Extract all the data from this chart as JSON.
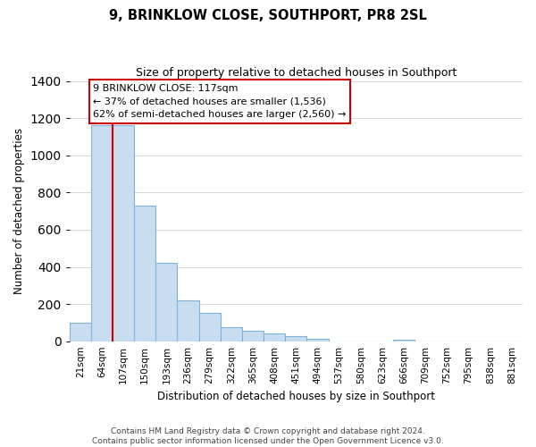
{
  "title": "9, BRINKLOW CLOSE, SOUTHPORT, PR8 2SL",
  "subtitle": "Size of property relative to detached houses in Southport",
  "xlabel": "Distribution of detached houses by size in Southport",
  "ylabel": "Number of detached properties",
  "bar_labels": [
    "21sqm",
    "64sqm",
    "107sqm",
    "150sqm",
    "193sqm",
    "236sqm",
    "279sqm",
    "322sqm",
    "365sqm",
    "408sqm",
    "451sqm",
    "494sqm",
    "537sqm",
    "580sqm",
    "623sqm",
    "666sqm",
    "709sqm",
    "752sqm",
    "795sqm",
    "838sqm",
    "881sqm"
  ],
  "bar_values": [
    100,
    1160,
    1160,
    730,
    420,
    220,
    150,
    75,
    55,
    40,
    25,
    15,
    0,
    0,
    0,
    10,
    0,
    0,
    0,
    0,
    0
  ],
  "bar_color": "#c9ddf0",
  "bar_edge_color": "#7fb3d9",
  "red_line_index": 2,
  "red_line_color": "#cc0000",
  "annotation_box_color": "#ffffff",
  "annotation_box_edge": "#cc0000",
  "ylim": [
    0,
    1400
  ],
  "yticks": [
    0,
    200,
    400,
    600,
    800,
    1000,
    1200,
    1400
  ],
  "footer_line1": "Contains HM Land Registry data © Crown copyright and database right 2024.",
  "footer_line2": "Contains public sector information licensed under the Open Government Licence v3.0.",
  "background_color": "#ffffff",
  "grid_color": "#d0d0d0",
  "figwidth": 6.0,
  "figheight": 5.0,
  "dpi": 100
}
